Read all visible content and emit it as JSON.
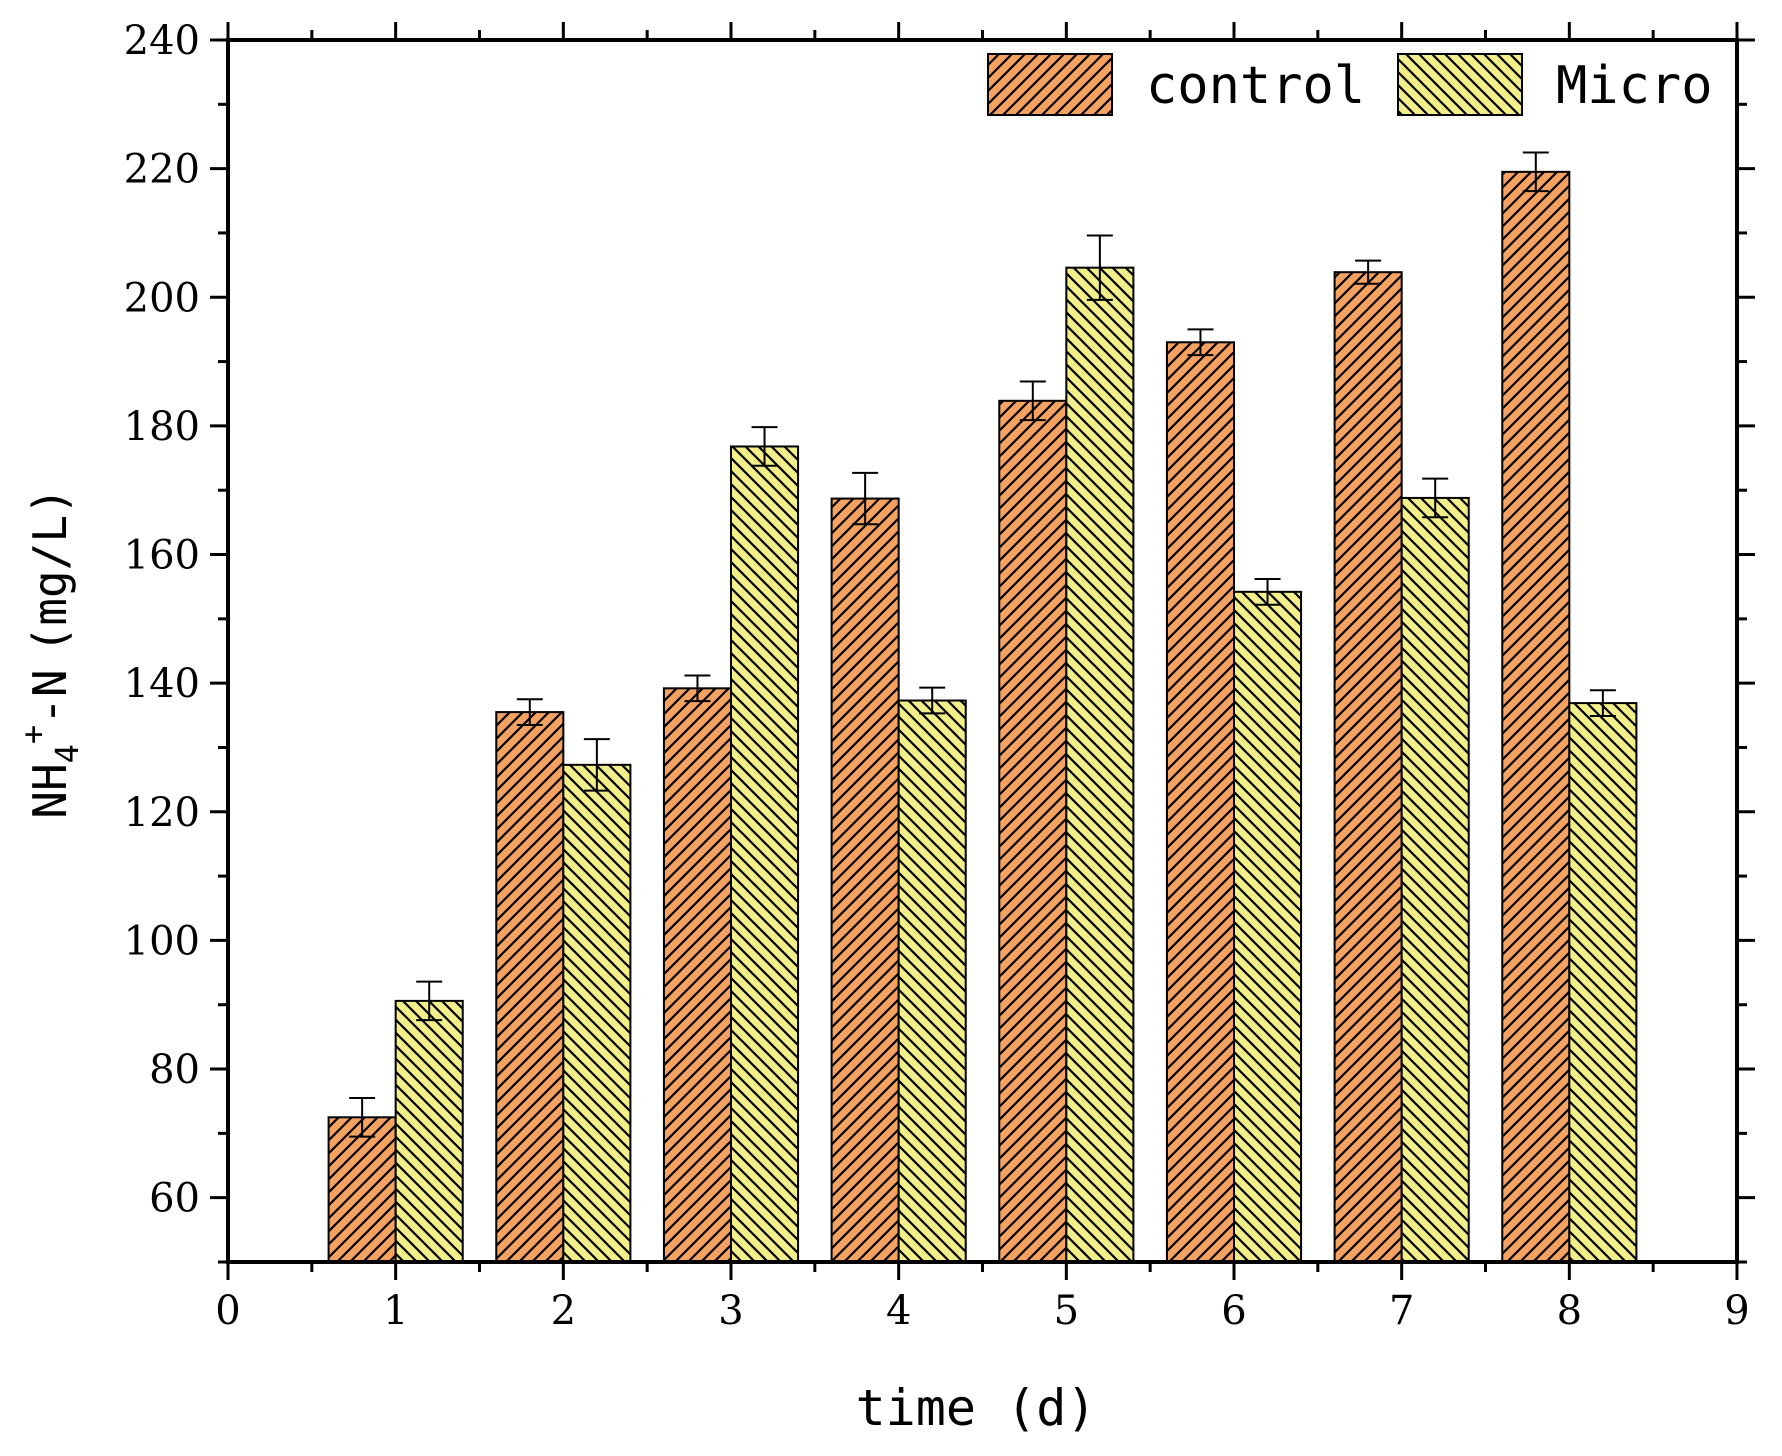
{
  "chart_data": {
    "type": "bar",
    "xlabel": "time (d)",
    "ylabel": {
      "base": "NH",
      "subscript": "4",
      "superscript": "+",
      "suffix": "-N",
      "unit": "(mg/L)"
    },
    "xlim": [
      0,
      9
    ],
    "ylim": [
      50,
      240
    ],
    "x_ticks": [
      "0",
      "1",
      "2",
      "3",
      "4",
      "5",
      "6",
      "7",
      "8",
      "9"
    ],
    "y_ticks": [
      "60",
      "80",
      "100",
      "120",
      "140",
      "160",
      "180",
      "200",
      "220",
      "240"
    ],
    "categories": [
      "1",
      "2",
      "3",
      "4",
      "5",
      "6",
      "7",
      "8"
    ],
    "grid": false,
    "legend_position": "top-right",
    "series": [
      {
        "name": "control",
        "color": "#F4A261",
        "hatch": "forward-diagonal",
        "values": [
          72.5,
          135.5,
          139.2,
          168.7,
          183.9,
          193.0,
          203.9,
          219.5
        ],
        "errors": [
          3.0,
          2.0,
          2.0,
          4.0,
          3.0,
          2.0,
          1.8,
          3.0
        ]
      },
      {
        "name": "Micro",
        "color": "#F2EE8A",
        "hatch": "backward-diagonal",
        "values": [
          90.6,
          127.3,
          176.8,
          137.3,
          204.6,
          154.2,
          168.8,
          136.9
        ],
        "errors": [
          3.0,
          4.0,
          3.0,
          2.0,
          5.0,
          2.0,
          3.0,
          2.0
        ]
      }
    ]
  }
}
